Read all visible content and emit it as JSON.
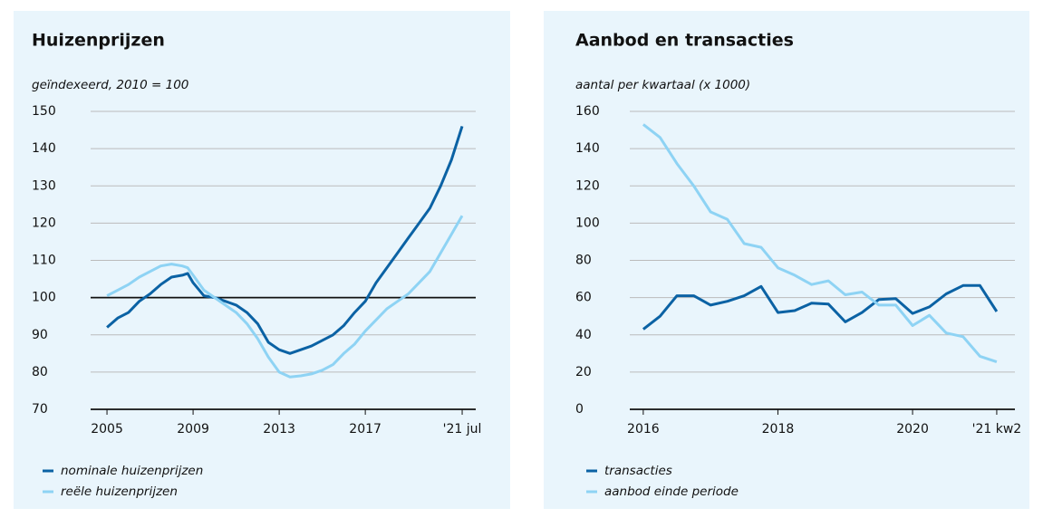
{
  "chart_data": [
    {
      "type": "line",
      "title": "Huizenprijzen",
      "subtitle": "geïndexeerd, 2010 = 100",
      "xlim": [
        2004.24,
        2022.13
      ],
      "xticks": [
        2005,
        2009,
        2013,
        2017,
        {
          "value": 2021.5,
          "label": "'21 jul"
        }
      ],
      "ylim": [
        70,
        150
      ],
      "yticks": [
        70,
        80,
        90,
        100,
        110,
        120,
        130,
        140,
        150
      ],
      "grid": true,
      "reference_line": 100,
      "x": [
        2005,
        2005.5,
        2006,
        2006.5,
        2007,
        2007.5,
        2008,
        2008.5,
        2008.75,
        2009,
        2009.5,
        2010,
        2010.5,
        2011,
        2011.5,
        2012,
        2012.5,
        2013,
        2013.5,
        2014,
        2014.5,
        2015,
        2015.5,
        2016,
        2016.5,
        2017,
        2017.5,
        2018,
        2018.5,
        2019,
        2019.5,
        2020,
        2020.5,
        2021,
        2021.5
      ],
      "series": [
        {
          "name": "nominale huizenprijzen",
          "color": "#0b62a4",
          "values": [
            92,
            94.5,
            96,
            99,
            101,
            103.5,
            105.5,
            106,
            106.5,
            104,
            100.5,
            100,
            99,
            98,
            96,
            93,
            88,
            86,
            85,
            86,
            87,
            88.5,
            90,
            92.5,
            96,
            99,
            104,
            108,
            112,
            116,
            120,
            124,
            130,
            137,
            146
          ]
        },
        {
          "name": "reële huizenprijzen",
          "color": "#8ed3f4",
          "values": [
            100.5,
            102,
            103.5,
            105.5,
            107,
            108.5,
            109,
            108.5,
            108,
            106,
            102,
            100,
            98,
            96,
            93,
            89,
            84,
            80,
            78.7,
            79,
            79.5,
            80.5,
            82,
            85,
            87.5,
            91,
            94,
            97,
            99,
            101,
            104,
            107,
            112,
            117,
            122
          ]
        }
      ]
    },
    {
      "type": "line",
      "title": "Aanbod en transacties",
      "subtitle": "aantal per kwartaal (x 1000)",
      "xlim": [
        2015.8,
        2021.52
      ],
      "xticks": [
        2016,
        2018,
        2020,
        {
          "value": 2021.25,
          "label": "'21 kw2"
        }
      ],
      "ylim": [
        0,
        160
      ],
      "yticks": [
        0,
        20,
        40,
        60,
        80,
        100,
        120,
        140,
        160
      ],
      "grid": true,
      "x": [
        2016,
        2016.25,
        2016.5,
        2016.75,
        2017,
        2017.25,
        2017.5,
        2017.75,
        2018,
        2018.25,
        2018.5,
        2018.75,
        2019,
        2019.25,
        2019.5,
        2019.75,
        2020,
        2020.25,
        2020.5,
        2020.75,
        2021,
        2021.25
      ],
      "series": [
        {
          "name": "transacties",
          "color": "#0b62a4",
          "values": [
            43,
            50,
            61,
            61,
            56,
            58,
            61,
            66,
            52,
            53,
            57,
            56.5,
            47,
            52,
            59,
            59.5,
            51.5,
            55,
            62,
            66.5,
            66.5,
            52.5
          ]
        },
        {
          "name": "aanbod einde periode",
          "color": "#8ed3f4",
          "values": [
            153,
            146,
            132,
            120,
            106,
            102,
            89,
            87,
            76,
            72,
            67,
            69,
            61.5,
            63,
            56,
            56,
            45,
            50.5,
            41,
            39,
            28.5,
            25.5
          ]
        }
      ]
    }
  ]
}
